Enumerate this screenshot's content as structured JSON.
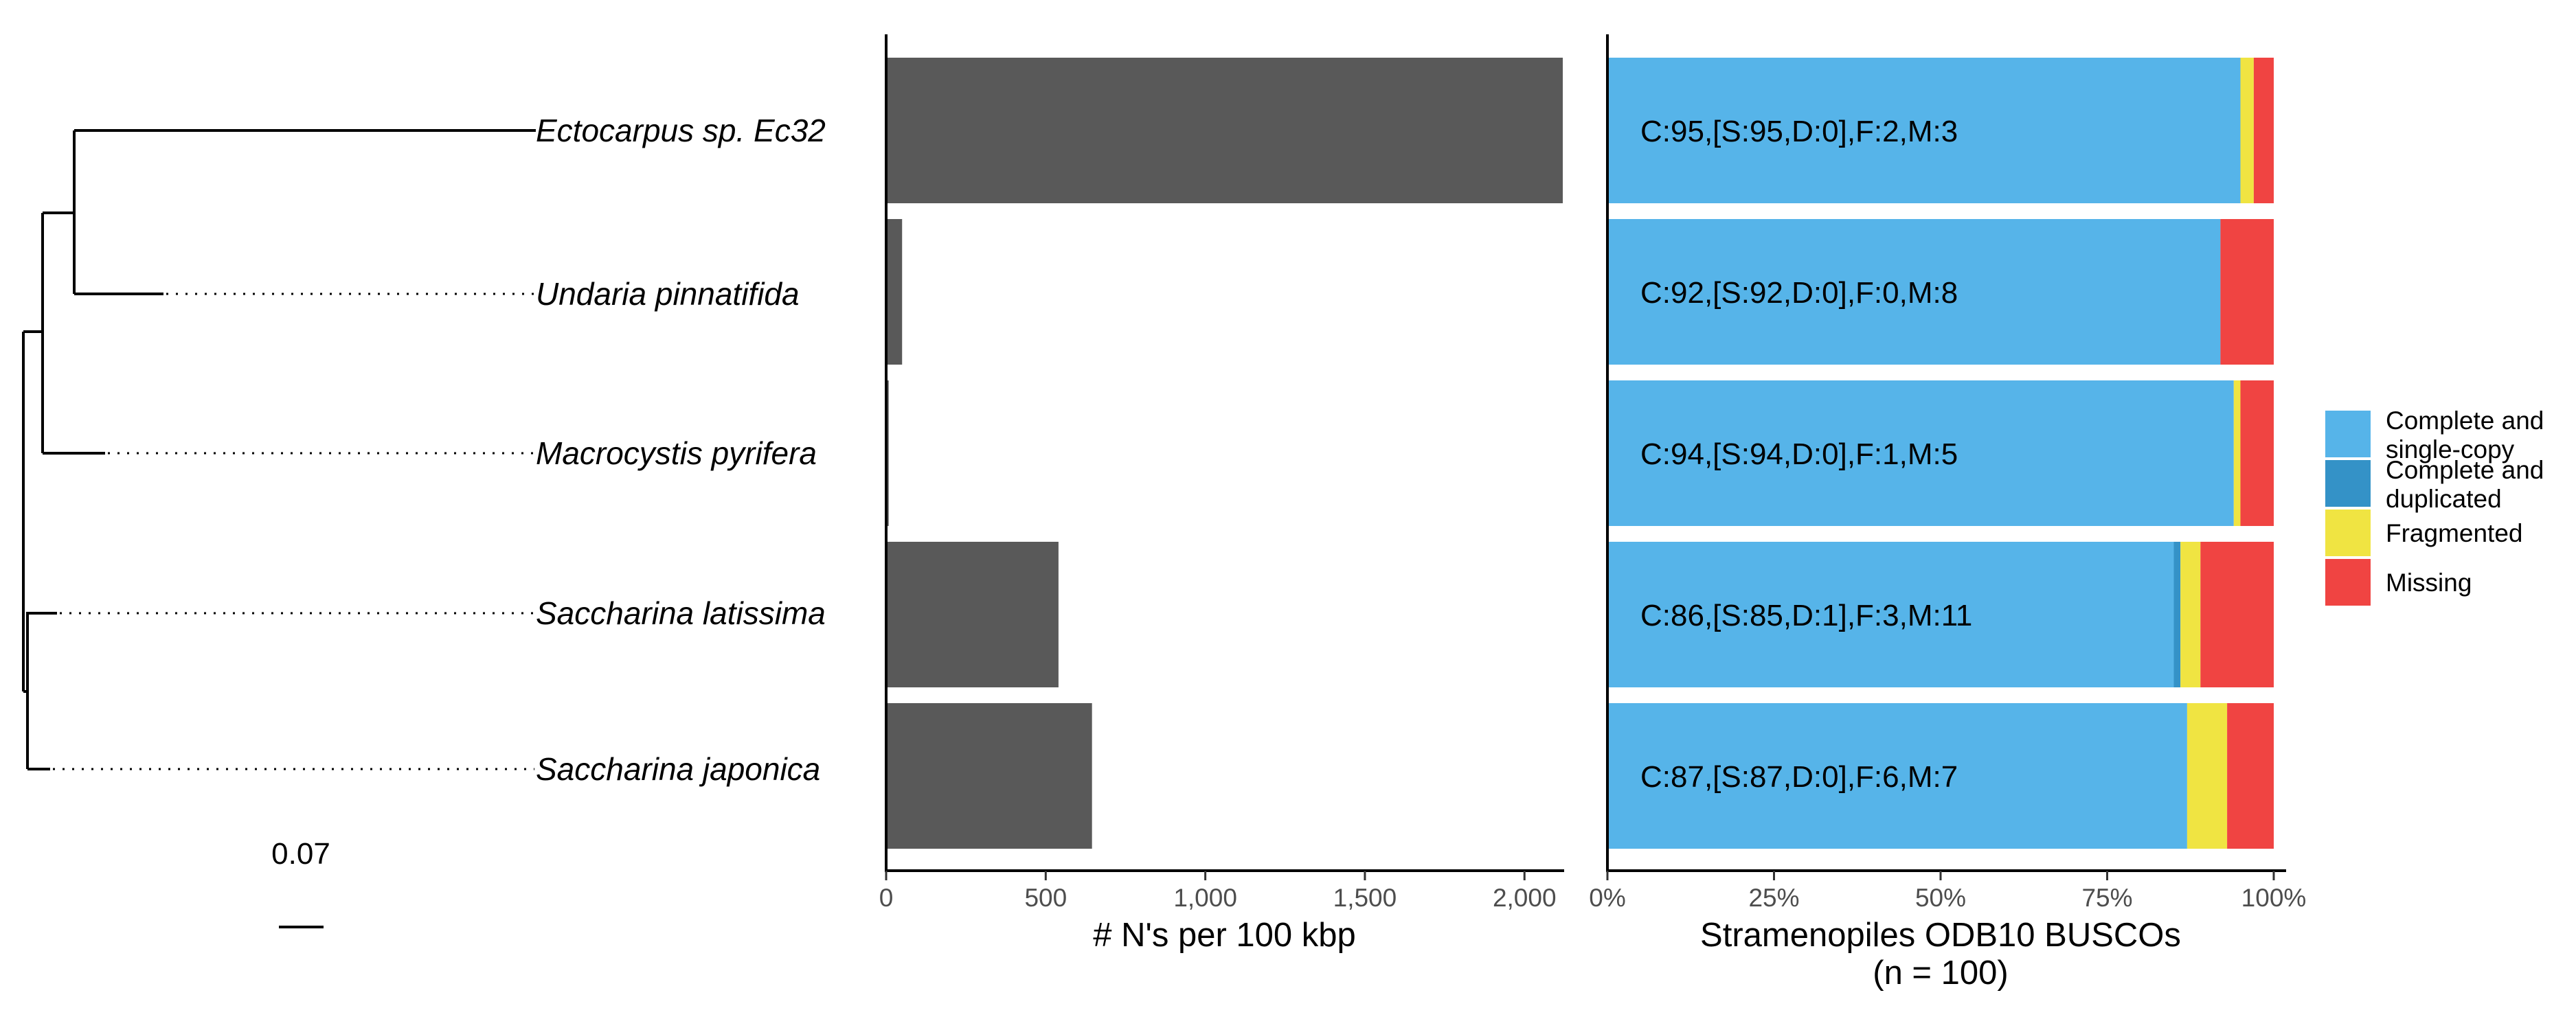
{
  "tree": {
    "species": [
      "Ectocarpus sp. Ec32",
      "Undaria pinnatifida",
      "Macrocystis pyrifera",
      "Saccharina latissima",
      "Saccharina japonica"
    ],
    "scale_label": "0.07",
    "scale_length": 0.07
  },
  "chart_data": [
    {
      "type": "bar",
      "orientation": "horizontal",
      "categories": [
        "Ectocarpus sp. Ec32",
        "Undaria pinnatifida",
        "Macrocystis pyrifera",
        "Saccharina latissima",
        "Saccharina japonica"
      ],
      "values": [
        2120,
        50,
        8,
        540,
        645
      ],
      "xlabel": "# N's per 100 kbp",
      "xlim": [
        0,
        2120
      ],
      "xticks": [
        0,
        500,
        1000,
        1500,
        2000
      ],
      "xtick_labels": [
        "0",
        "500",
        "1,000",
        "1,500",
        "2,000"
      ],
      "color": "#595959",
      "grid": false
    },
    {
      "type": "bar",
      "orientation": "horizontal",
      "stacked": true,
      "categories": [
        "Ectocarpus sp. Ec32",
        "Undaria pinnatifida",
        "Macrocystis pyrifera",
        "Saccharina latissima",
        "Saccharina japonica"
      ],
      "series": [
        {
          "name": "Complete and single-copy",
          "color": "#56B4E9",
          "values": [
            95,
            92,
            94,
            85,
            87
          ]
        },
        {
          "name": "Complete and duplicated",
          "color": "#3492C7",
          "values": [
            0,
            0,
            0,
            1,
            0
          ]
        },
        {
          "name": "Fragmented",
          "color": "#F0E442",
          "values": [
            2,
            0,
            1,
            3,
            6
          ]
        },
        {
          "name": "Missing",
          "color": "#F04442",
          "values": [
            3,
            8,
            5,
            11,
            7
          ]
        }
      ],
      "bar_labels": [
        "C:95,[S:95,D:0],F:2,M:3",
        "C:92,[S:92,D:0],F:0,M:8",
        "C:94,[S:94,D:0],F:1,M:5",
        "C:86,[S:85,D:1],F:3,M:11",
        "C:87,[S:87,D:0],F:6,M:7"
      ],
      "xlabel": "Stramenopiles ODB10 BUSCOs",
      "xlabel_line2": "(n = 100)",
      "xlim": [
        0,
        100
      ],
      "xticks": [
        0,
        25,
        50,
        75,
        100
      ],
      "xtick_labels": [
        "0%",
        "25%",
        "50%",
        "75%",
        "100%"
      ],
      "legend": {
        "placement": "right",
        "entries": [
          {
            "label_lines": [
              "Complete and",
              "single-copy"
            ],
            "color": "#56B4E9"
          },
          {
            "label_lines": [
              "Complete and",
              "duplicated"
            ],
            "color": "#3492C7"
          },
          {
            "label_lines": [
              "Fragmented"
            ],
            "color": "#F0E442"
          },
          {
            "label_lines": [
              "Missing"
            ],
            "color": "#F04442"
          }
        ]
      },
      "grid": false
    }
  ]
}
